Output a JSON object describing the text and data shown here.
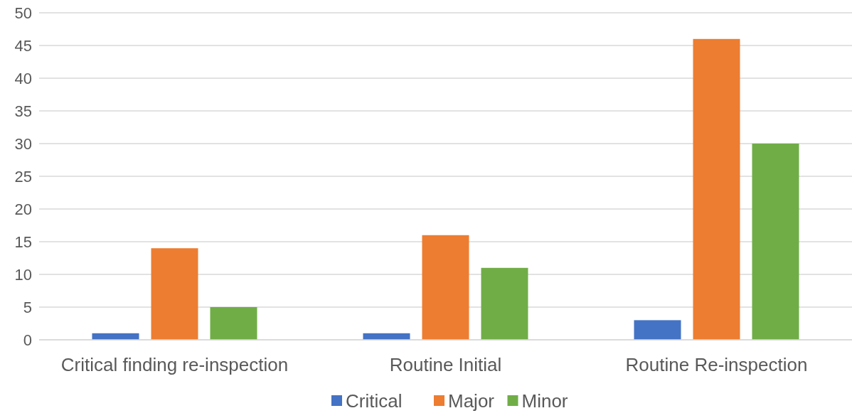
{
  "chart_data": {
    "type": "bar",
    "categories": [
      "Critical finding re-inspection",
      "Routine Initial",
      "Routine Re-inspection"
    ],
    "series": [
      {
        "name": "Critical",
        "color": "#4472c4",
        "values": [
          1,
          1,
          3
        ]
      },
      {
        "name": "Major",
        "color": "#ed7d31",
        "values": [
          14,
          16,
          46
        ]
      },
      {
        "name": "Minor",
        "color": "#70ad47",
        "values": [
          5,
          11,
          30
        ]
      }
    ],
    "ylim": [
      0,
      50
    ],
    "yticks": [
      0,
      5,
      10,
      15,
      20,
      25,
      30,
      35,
      40,
      45,
      50
    ],
    "grid": "y",
    "legend": "bottom"
  }
}
